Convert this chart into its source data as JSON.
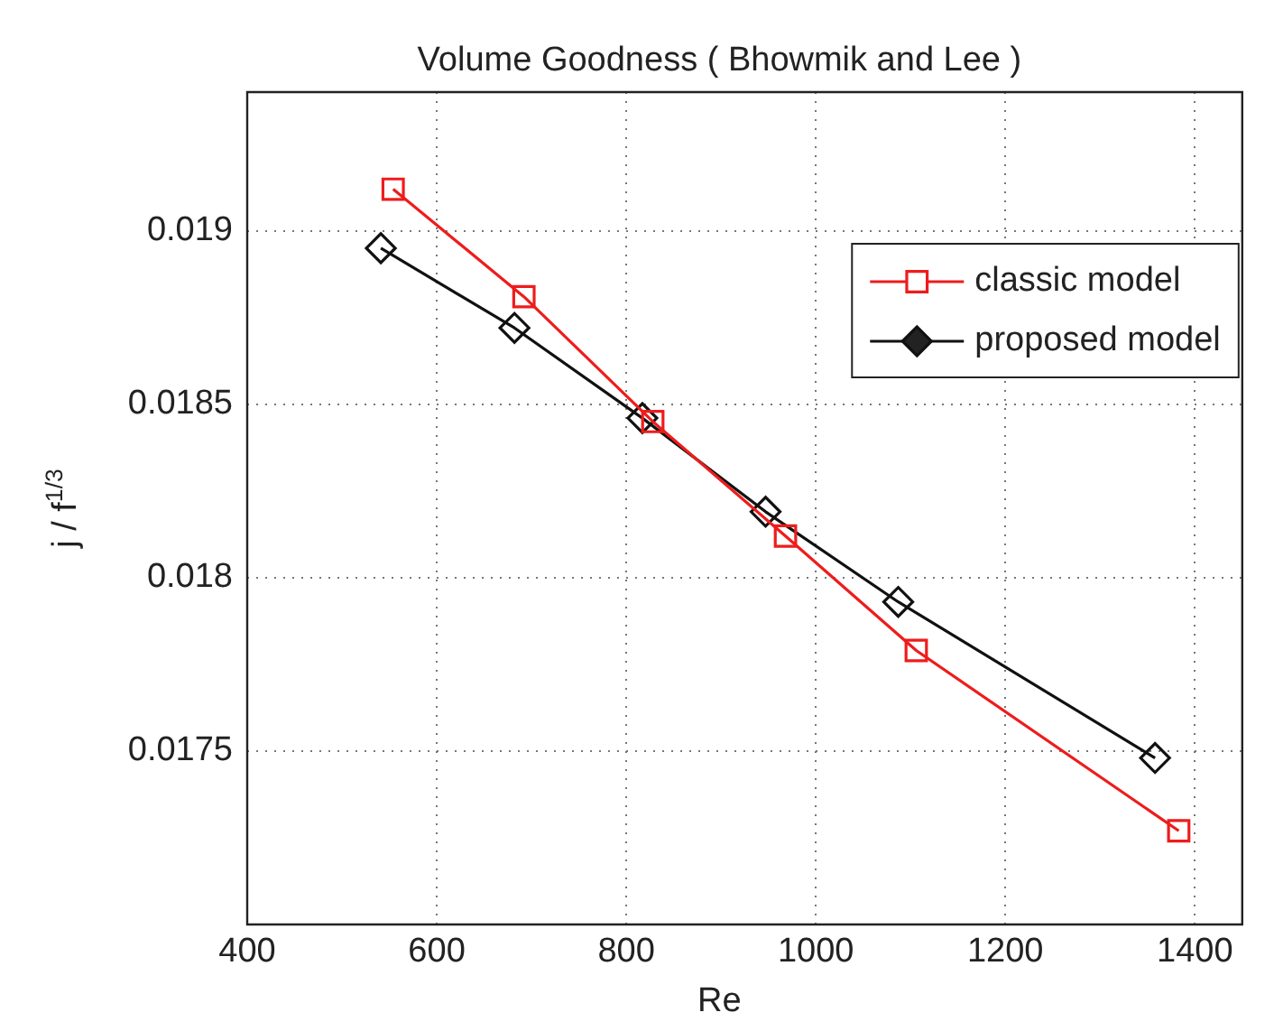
{
  "chart_data": {
    "type": "line",
    "title": "Volume Goodness ( Bhowmik and Lee )",
    "xlabel": "Re",
    "ylabel": "j / f$^{1/3}$",
    "series": [
      {
        "name": "classic model",
        "color": "#ee1c1c",
        "marker": "square",
        "x": [
          554,
          692,
          828,
          968,
          1106,
          1383
        ],
        "values": [
          0.01912,
          0.01881,
          0.01845,
          0.01812,
          0.01779,
          0.01727
        ]
      },
      {
        "name": "proposed model",
        "color": "#111111",
        "marker": "diamond",
        "x": [
          541,
          682,
          817,
          947,
          1087,
          1358
        ],
        "values": [
          0.01895,
          0.01872,
          0.01846,
          0.01819,
          0.01793,
          0.01748
        ]
      }
    ],
    "xlim": [
      400,
      1450
    ],
    "xticks": [
      400,
      600,
      800,
      1000,
      1200,
      1400
    ],
    "ylim": [
      0.017,
      0.0194
    ],
    "yticks": [
      0.0175,
      0.018,
      0.0185,
      0.019
    ],
    "grid": true,
    "legend": "top right",
    "line_style": "solid"
  }
}
